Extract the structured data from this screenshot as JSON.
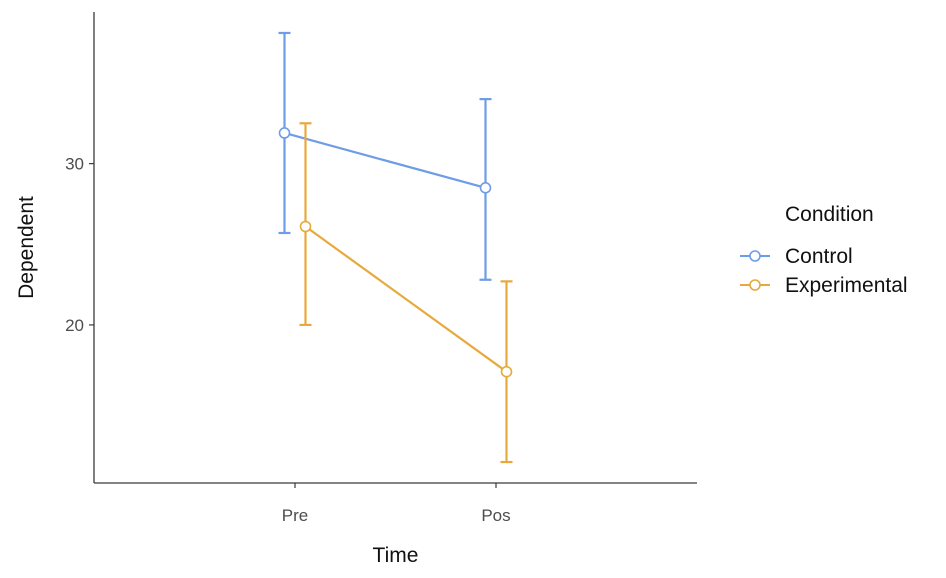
{
  "chart_data": {
    "type": "line",
    "xlabel": "Time",
    "ylabel": "Dependent",
    "categories": [
      "Pre",
      "Pos"
    ],
    "ylim": [
      10.2,
      39.4
    ],
    "y_ticks": [
      20,
      30
    ],
    "y_tick_labels": [
      "20",
      "30"
    ],
    "grid": false,
    "legend": {
      "title": "Condition",
      "position": "right"
    },
    "error_bars": true,
    "series": [
      {
        "name": "Control",
        "color": "#6f9ce6",
        "values": [
          31.9,
          28.5
        ],
        "error_low": [
          25.7,
          22.8
        ],
        "error_high": [
          38.1,
          34.0
        ]
      },
      {
        "name": "Experimental",
        "color": "#e8a93c",
        "values": [
          26.1,
          17.1
        ],
        "error_low": [
          20.0,
          11.5
        ],
        "error_high": [
          32.5,
          22.7
        ]
      }
    ]
  }
}
